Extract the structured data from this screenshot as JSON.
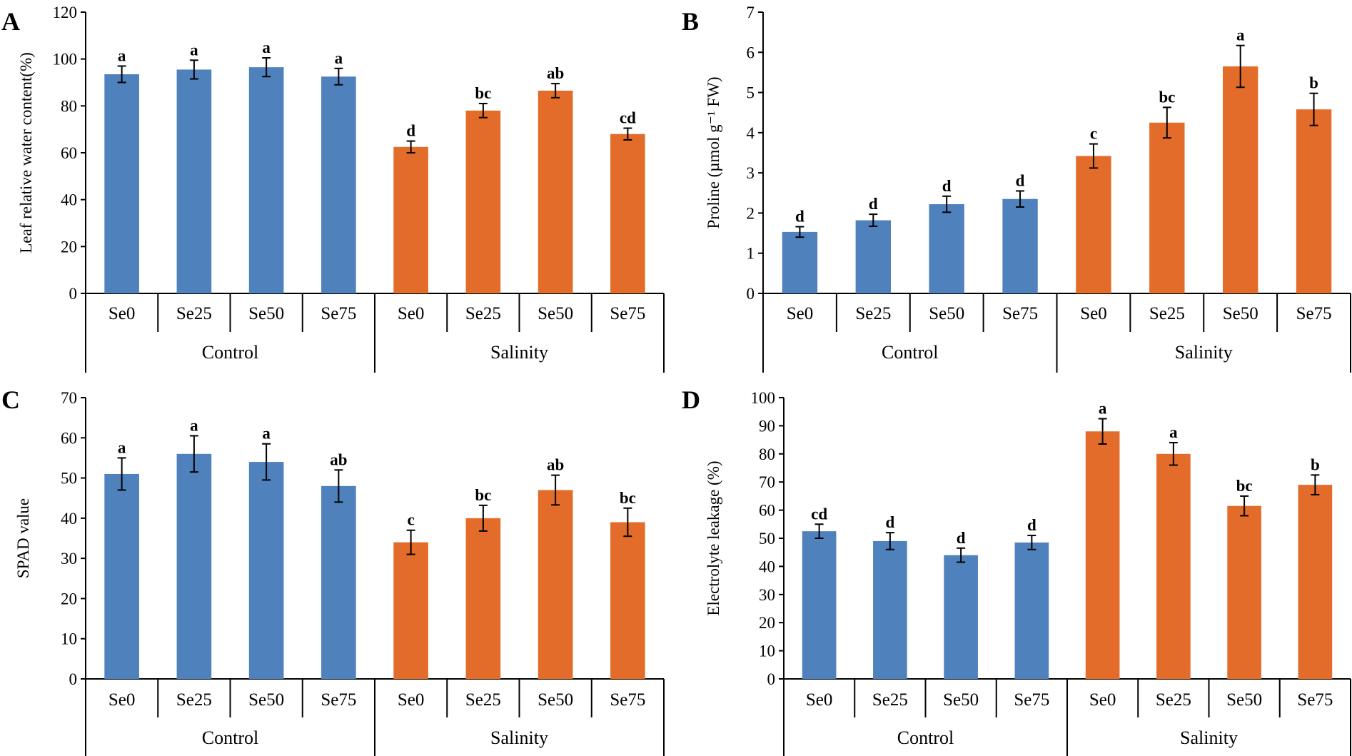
{
  "colors": {
    "control": "#4F81BD",
    "salinity": "#E46C2A"
  },
  "chart_data": [
    {
      "panel": "A",
      "type": "bar",
      "ylabel": "Leaf relative water content(%)",
      "ylim": [
        0,
        120
      ],
      "ticks": [
        0,
        20,
        40,
        60,
        80,
        100,
        120
      ],
      "categories": [
        "Se0",
        "Se25",
        "Se50",
        "Se75",
        "Se0",
        "Se25",
        "Se50",
        "Se75"
      ],
      "groups": [
        "Control",
        "Salinity"
      ],
      "values": [
        93.5,
        95.5,
        96.5,
        92.5,
        62.5,
        78,
        86.5,
        68
      ],
      "errors": [
        3.5,
        4,
        4,
        3.5,
        2.5,
        3,
        3,
        2.5
      ],
      "letters": [
        "a",
        "a",
        "a",
        "a",
        "d",
        "bc",
        "ab",
        "cd"
      ]
    },
    {
      "panel": "B",
      "type": "bar",
      "ylabel": "Proline (µmol g⁻¹ FW)",
      "ylim": [
        0,
        7
      ],
      "ticks": [
        0,
        1,
        2,
        3,
        4,
        5,
        6,
        7
      ],
      "categories": [
        "Se0",
        "Se25",
        "Se50",
        "Se75",
        "Se0",
        "Se25",
        "Se50",
        "Se75"
      ],
      "groups": [
        "Control",
        "Salinity"
      ],
      "values": [
        1.53,
        1.82,
        2.22,
        2.35,
        3.42,
        4.25,
        5.65,
        4.58
      ],
      "errors": [
        0.13,
        0.15,
        0.2,
        0.2,
        0.3,
        0.38,
        0.52,
        0.4
      ],
      "letters": [
        "d",
        "d",
        "d",
        "d",
        "c",
        "bc",
        "a",
        "b"
      ]
    },
    {
      "panel": "C",
      "type": "bar",
      "ylabel": "SPAD value",
      "ylim": [
        0,
        70
      ],
      "ticks": [
        0,
        10,
        20,
        30,
        40,
        50,
        60,
        70
      ],
      "categories": [
        "Se0",
        "Se25",
        "Se50",
        "Se75",
        "Se0",
        "Se25",
        "Se50",
        "Se75"
      ],
      "groups": [
        "Control",
        "Salinity"
      ],
      "values": [
        51,
        56,
        54,
        48,
        34,
        40,
        47,
        39
      ],
      "errors": [
        4,
        4.5,
        4.5,
        4,
        3,
        3.2,
        3.7,
        3.5
      ],
      "letters": [
        "a",
        "a",
        "a",
        "ab",
        "c",
        "bc",
        "ab",
        "bc"
      ]
    },
    {
      "panel": "D",
      "type": "bar",
      "ylabel": "Electrolyte leakage (%)",
      "ylim": [
        0,
        100
      ],
      "ticks": [
        0,
        10,
        20,
        30,
        40,
        50,
        60,
        70,
        80,
        90,
        100
      ],
      "categories": [
        "Se0",
        "Se25",
        "Se50",
        "Se75",
        "Se0",
        "Se25",
        "Se50",
        "Se75"
      ],
      "groups": [
        "Control",
        "Salinity"
      ],
      "values": [
        52.5,
        49,
        44,
        48.5,
        88,
        80,
        61.5,
        69
      ],
      "errors": [
        2.5,
        3,
        2.5,
        2.5,
        4.5,
        4,
        3.5,
        3.5
      ],
      "letters": [
        "cd",
        "d",
        "d",
        "d",
        "a",
        "a",
        "bc",
        "b"
      ]
    }
  ]
}
